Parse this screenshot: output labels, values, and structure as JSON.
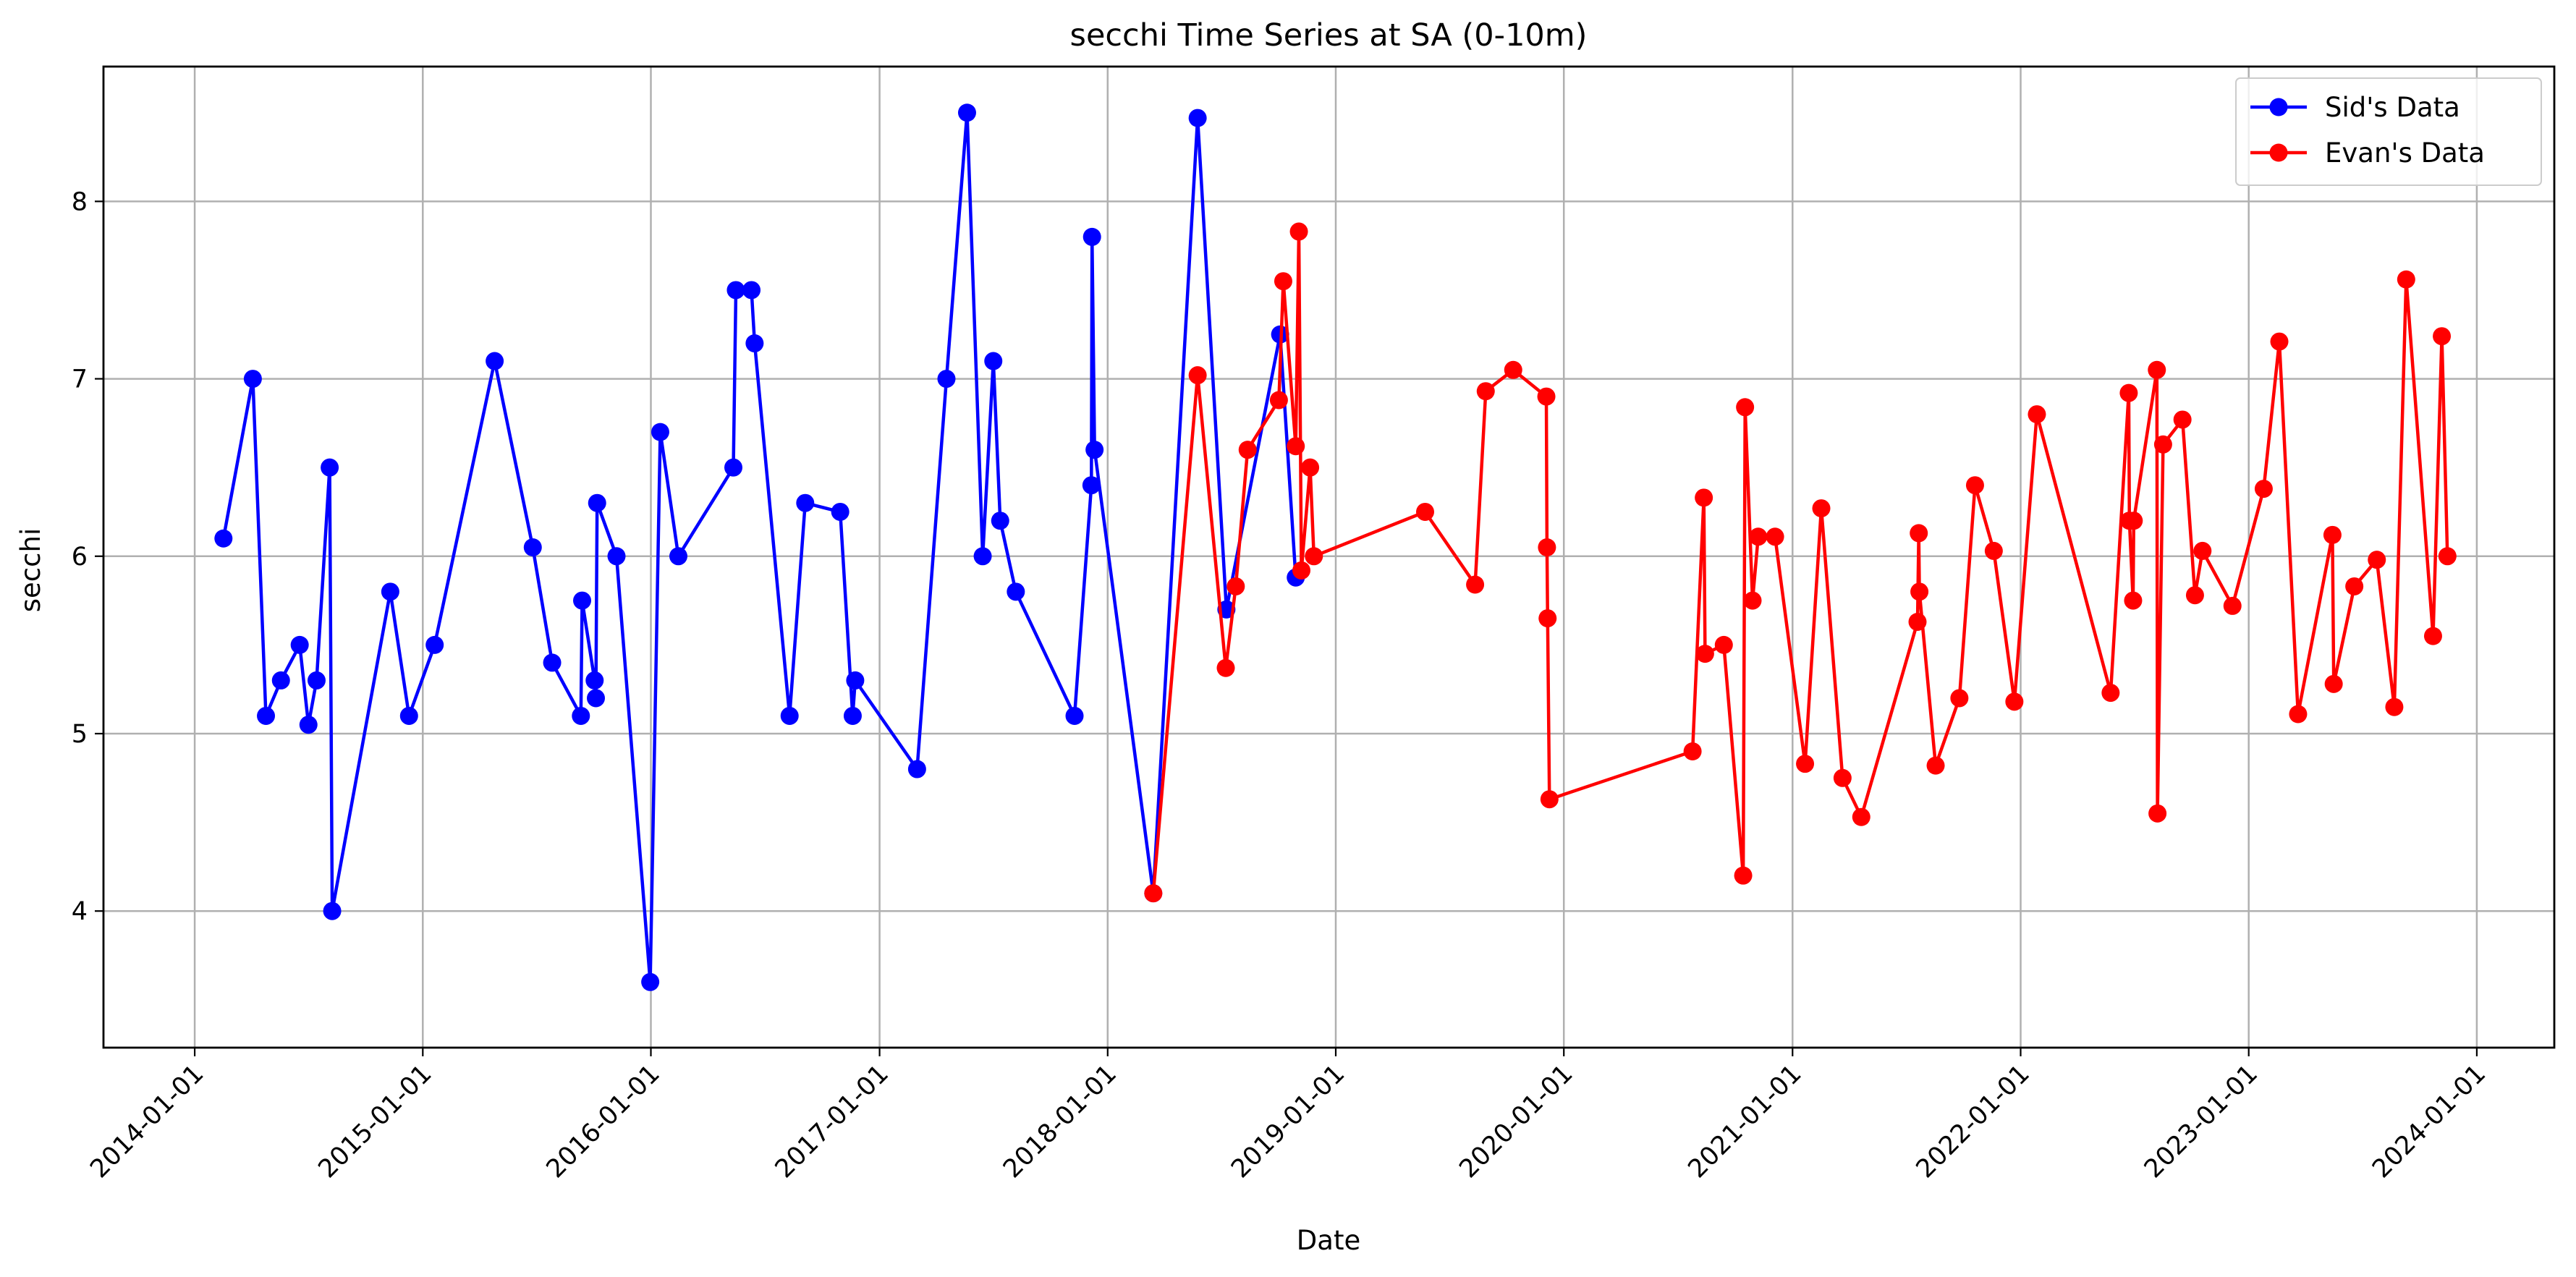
{
  "chart_data": {
    "type": "line",
    "title": "secchi Time Series at SA (0-10m)",
    "xlabel": "Date",
    "ylabel": "secchi",
    "x_axis": "date",
    "xlim": [
      "2013-08-08",
      "2024-05-04"
    ],
    "ylim": [
      3.23,
      8.76
    ],
    "x_ticks": [
      "2014-01-01",
      "2015-01-01",
      "2016-01-01",
      "2017-01-01",
      "2018-01-01",
      "2019-01-01",
      "2020-01-01",
      "2021-01-01",
      "2022-01-01",
      "2023-01-01",
      "2024-01-01"
    ],
    "y_ticks": [
      4,
      5,
      6,
      7,
      8
    ],
    "grid": true,
    "legend_position": "top-right",
    "series": [
      {
        "name": "Sid's Data",
        "color": "#0000ff",
        "points": [
          [
            "2014-02-16",
            6.1
          ],
          [
            "2014-04-04",
            7.0
          ],
          [
            "2014-04-25",
            5.1
          ],
          [
            "2014-05-19",
            5.3
          ],
          [
            "2014-06-18",
            5.5
          ],
          [
            "2014-07-02",
            5.05
          ],
          [
            "2014-07-15",
            5.3
          ],
          [
            "2014-08-05",
            6.5
          ],
          [
            "2014-08-09",
            4.0
          ],
          [
            "2014-11-10",
            5.8
          ],
          [
            "2014-12-10",
            5.1
          ],
          [
            "2015-01-20",
            5.5
          ],
          [
            "2015-04-26",
            7.1
          ],
          [
            "2015-06-26",
            6.05
          ],
          [
            "2015-07-27",
            5.4
          ],
          [
            "2015-09-11",
            5.1
          ],
          [
            "2015-09-13",
            5.75
          ],
          [
            "2015-10-03",
            5.3
          ],
          [
            "2015-10-05",
            5.2
          ],
          [
            "2015-10-07",
            6.3
          ],
          [
            "2015-11-07",
            6.0
          ],
          [
            "2015-12-31",
            3.6
          ],
          [
            "2016-01-16",
            6.7
          ],
          [
            "2016-02-14",
            6.0
          ],
          [
            "2016-05-12",
            6.5
          ],
          [
            "2016-05-16",
            7.5
          ],
          [
            "2016-06-10",
            7.5
          ],
          [
            "2016-06-15",
            7.2
          ],
          [
            "2016-08-10",
            5.1
          ],
          [
            "2016-09-04",
            6.3
          ],
          [
            "2016-10-30",
            6.25
          ],
          [
            "2016-11-19",
            5.1
          ],
          [
            "2016-11-23",
            5.3
          ],
          [
            "2017-03-02",
            4.8
          ],
          [
            "2017-04-18",
            7.0
          ],
          [
            "2017-05-21",
            8.5
          ],
          [
            "2017-06-15",
            6.0
          ],
          [
            "2017-07-02",
            7.1
          ],
          [
            "2017-07-13",
            6.2
          ],
          [
            "2017-08-07",
            5.8
          ],
          [
            "2017-11-09",
            5.1
          ],
          [
            "2017-12-06",
            6.4
          ],
          [
            "2017-12-07",
            7.8
          ],
          [
            "2017-12-11",
            6.6
          ],
          [
            "2018-03-15",
            4.1
          ],
          [
            "2018-05-25",
            8.47
          ],
          [
            "2018-07-10",
            5.7
          ],
          [
            "2018-10-04",
            7.25
          ],
          [
            "2018-10-29",
            5.88
          ]
        ]
      },
      {
        "name": "Evan's Data",
        "color": "#ff0000",
        "points": [
          [
            "2018-03-15",
            4.1
          ],
          [
            "2018-05-25",
            7.02
          ],
          [
            "2018-07-09",
            5.37
          ],
          [
            "2018-07-25",
            5.83
          ],
          [
            "2018-08-13",
            6.6
          ],
          [
            "2018-10-02",
            6.88
          ],
          [
            "2018-10-09",
            7.55
          ],
          [
            "2018-10-29",
            6.62
          ],
          [
            "2018-11-03",
            7.83
          ],
          [
            "2018-11-07",
            5.92
          ],
          [
            "2018-11-21",
            6.5
          ],
          [
            "2018-11-27",
            6.0
          ],
          [
            "2019-05-24",
            6.25
          ],
          [
            "2019-08-12",
            5.84
          ],
          [
            "2019-08-29",
            6.93
          ],
          [
            "2019-10-12",
            7.05
          ],
          [
            "2019-12-04",
            6.9
          ],
          [
            "2019-12-05",
            6.05
          ],
          [
            "2019-12-06",
            5.65
          ],
          [
            "2019-12-09",
            4.63
          ],
          [
            "2020-07-25",
            4.9
          ],
          [
            "2020-08-12",
            6.33
          ],
          [
            "2020-08-14",
            5.45
          ],
          [
            "2020-09-13",
            5.5
          ],
          [
            "2020-10-14",
            4.2
          ],
          [
            "2020-10-17",
            6.84
          ],
          [
            "2020-10-29",
            5.75
          ],
          [
            "2020-11-07",
            6.11
          ],
          [
            "2020-12-04",
            6.11
          ],
          [
            "2021-01-21",
            4.83
          ],
          [
            "2021-02-16",
            6.27
          ],
          [
            "2021-03-22",
            4.75
          ],
          [
            "2021-04-21",
            4.53
          ],
          [
            "2021-07-20",
            5.63
          ],
          [
            "2021-07-22",
            6.13
          ],
          [
            "2021-07-23",
            5.8
          ],
          [
            "2021-08-18",
            4.82
          ],
          [
            "2021-09-25",
            5.2
          ],
          [
            "2021-10-20",
            6.4
          ],
          [
            "2021-11-19",
            6.03
          ],
          [
            "2021-12-22",
            5.18
          ],
          [
            "2022-01-27",
            6.8
          ],
          [
            "2022-05-25",
            5.23
          ],
          [
            "2022-06-23",
            6.92
          ],
          [
            "2022-06-24",
            6.2
          ],
          [
            "2022-06-30",
            5.75
          ],
          [
            "2022-07-01",
            6.2
          ],
          [
            "2022-08-07",
            7.05
          ],
          [
            "2022-08-08",
            4.55
          ],
          [
            "2022-08-17",
            6.63
          ],
          [
            "2022-09-17",
            6.77
          ],
          [
            "2022-10-07",
            5.78
          ],
          [
            "2022-10-19",
            6.03
          ],
          [
            "2022-12-06",
            5.72
          ],
          [
            "2023-01-25",
            6.38
          ],
          [
            "2023-02-19",
            7.21
          ],
          [
            "2023-03-21",
            5.11
          ],
          [
            "2023-05-15",
            6.12
          ],
          [
            "2023-05-17",
            5.28
          ],
          [
            "2023-06-19",
            5.83
          ],
          [
            "2023-07-25",
            5.98
          ],
          [
            "2023-08-22",
            5.15
          ],
          [
            "2023-09-10",
            7.56
          ],
          [
            "2023-10-23",
            5.55
          ],
          [
            "2023-11-06",
            7.24
          ],
          [
            "2023-11-15",
            6.0
          ]
        ]
      }
    ]
  }
}
